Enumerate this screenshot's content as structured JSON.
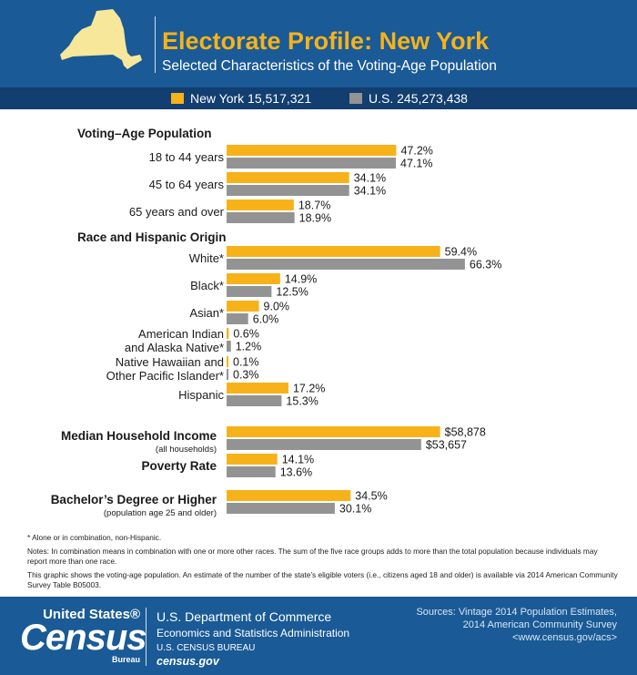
{
  "header": {
    "title": "Electorate Profile: New York",
    "subtitle": "Selected Characteristics of the Voting-Age Population"
  },
  "legend": {
    "ny_label": "New York 15,517,321",
    "us_label": "U.S. 245,273,438"
  },
  "colors": {
    "ny": "#f7b21a",
    "us": "#939393",
    "header": "#1a5a96",
    "legend_bar": "#123e70"
  },
  "chart_data": {
    "type": "bar",
    "orientation": "horizontal",
    "series": [
      {
        "name": "New York 15,517,321"
      },
      {
        "name": "U.S. 245,273,438"
      }
    ],
    "sections": [
      {
        "heading": "Voting–Age Population",
        "rows": [
          {
            "label": "18 to 44 years",
            "values": [
              47.2,
              47.1
            ],
            "labels": [
              "47.2%",
              "47.1%"
            ]
          },
          {
            "label": "45 to 64 years",
            "values": [
              34.1,
              34.1
            ],
            "labels": [
              "34.1%",
              "34.1%"
            ]
          },
          {
            "label": "65 years and over",
            "values": [
              18.7,
              18.9
            ],
            "labels": [
              "18.7%",
              "18.9%"
            ]
          }
        ]
      },
      {
        "heading": "Race and Hispanic Origin",
        "rows": [
          {
            "label": "White*",
            "values": [
              59.4,
              66.3
            ],
            "labels": [
              "59.4%",
              "66.3%"
            ]
          },
          {
            "label": "Black*",
            "values": [
              14.9,
              12.5
            ],
            "labels": [
              "14.9%",
              "12.5%"
            ]
          },
          {
            "label": "Asian*",
            "values": [
              9.0,
              6.0
            ],
            "labels": [
              "9.0%",
              "6.0%"
            ]
          },
          {
            "label": "American Indian",
            "label2": "and Alaska Native*",
            "values": [
              0.6,
              1.2
            ],
            "labels": [
              "0.6%",
              "1.2%"
            ]
          },
          {
            "label": "Native Hawaiian and",
            "label2": "Other Pacific Islander*",
            "values": [
              0.1,
              0.3
            ],
            "labels": [
              "0.1%",
              "0.3%"
            ]
          },
          {
            "label": "Hispanic",
            "values": [
              17.2,
              15.3
            ],
            "labels": [
              "17.2%",
              "15.3%"
            ]
          }
        ]
      },
      {
        "rows": [
          {
            "label": "Median Household Income",
            "label2": "(all households)",
            "bold": true,
            "values": [
              58878,
              53657
            ],
            "labels": [
              "$58,878",
              "$53,657"
            ],
            "unit": "dollars"
          },
          {
            "label": "Poverty Rate",
            "bold": true,
            "values": [
              14.1,
              13.6
            ],
            "labels": [
              "14.1%",
              "13.6%"
            ]
          },
          {
            "label": "Bachelor’s Degree or Higher",
            "label2": "(population age 25 and older)",
            "bold": true,
            "values": [
              34.5,
              30.1
            ],
            "labels": [
              "34.5%",
              "30.1%"
            ]
          }
        ]
      }
    ]
  },
  "notes": {
    "asterisk": "* Alone or in combination, non-Hispanic.",
    "notes": "Notes: In combination means in combination with one or more other races. The sum of the five race groups adds to more than the total population because individuals may report more than one race.",
    "graphic": "This graphic shows the voting-age population. An estimate of the number of the state’s eligible voters (i.e., citizens aged 18 and older) is available via 2014 American Community Survey Table B05003."
  },
  "footer": {
    "logo_top": "United States®",
    "logo_main": "Census",
    "logo_bottom": "Bureau",
    "dept_line1": "U.S. Department of Commerce",
    "dept_line2": "Economics and Statistics Administration",
    "dept_line3": "U.S. CENSUS BUREAU",
    "dept_line4": "census.gov",
    "sources_line1": "Sources: Vintage 2014 Population Estimates,",
    "sources_line2": "2014 American Community Survey",
    "sources_line3": "<www.census.gov/acs>"
  }
}
